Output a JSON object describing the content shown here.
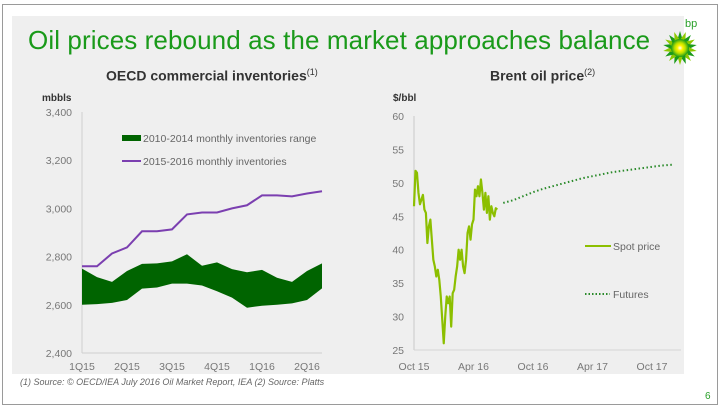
{
  "slide": {
    "title": "Oil prices rebound as the market approaches balance",
    "logo_text": "bp",
    "footnote": "(1)  Source: © OECD/IEA July 2016 Oil Market Report, IEA   (2) Source: Platts",
    "page_number": "6",
    "colors": {
      "title_green": "#1a9a1a",
      "range_fill": "#006400",
      "inventory_line": "#7b3fb0",
      "spot_line": "#8cbf00",
      "futures_dots": "#2a8a2a"
    }
  },
  "chart_data": [
    {
      "type": "area",
      "title": "OECD commercial inventories",
      "title_sup": "(1)",
      "ylabel": "mbbls",
      "xlabel": "",
      "ylim": [
        2400,
        3400
      ],
      "yticks": [
        "2,400",
        "2,600",
        "2,800",
        "3,000",
        "3,200",
        "3,400"
      ],
      "ytick_values": [
        2400,
        2600,
        2800,
        3000,
        3200,
        3400
      ],
      "xticks": [
        "1Q15",
        "2Q15",
        "3Q15",
        "4Q15",
        "1Q16",
        "2Q16"
      ],
      "xtick_index": [
        0,
        3,
        6,
        9,
        12,
        15
      ],
      "legend": [
        "2010-2014 monthly inventories range",
        "2015-2016 monthly inventories"
      ],
      "legend_position": "top-left",
      "grid": false,
      "series": [
        {
          "name": "2010-2014 monthly inventories range",
          "kind": "band",
          "upper": [
            2750,
            2715,
            2695,
            2740,
            2770,
            2772,
            2780,
            2810,
            2762,
            2776,
            2748,
            2735,
            2745,
            2712,
            2695,
            2740,
            2772
          ],
          "lower": [
            2600,
            2603,
            2608,
            2620,
            2667,
            2672,
            2688,
            2688,
            2680,
            2656,
            2630,
            2588,
            2596,
            2600,
            2606,
            2620,
            2668
          ]
        },
        {
          "name": "2015-2016 monthly inventories",
          "kind": "line",
          "values": [
            2760,
            2760,
            2813,
            2838,
            2905,
            2905,
            2913,
            2975,
            2983,
            2983,
            3000,
            3013,
            3054,
            3054,
            3050,
            3062,
            3071
          ]
        }
      ]
    },
    {
      "type": "line",
      "title": "Brent oil price",
      "title_sup": "(2)",
      "ylabel": "$/bbl",
      "xlabel": "",
      "ylim": [
        25,
        60
      ],
      "yticks": [
        "25",
        "30",
        "35",
        "40",
        "45",
        "50",
        "55",
        "60"
      ],
      "ytick_values": [
        25,
        30,
        35,
        40,
        45,
        50,
        55,
        60
      ],
      "xticks": [
        "Oct 15",
        "Apr 16",
        "Oct 16",
        "Apr 17",
        "Oct 17"
      ],
      "xtick_months": [
        0,
        6,
        12,
        18,
        24
      ],
      "xlim_months": [
        0,
        26
      ],
      "legend": [
        "Spot price",
        "Futures"
      ],
      "legend_position": "right",
      "grid": false,
      "series": [
        {
          "name": "Spot price",
          "style": "solid",
          "x_months": [
            0,
            0.15,
            0.3,
            0.45,
            0.6,
            0.75,
            0.9,
            1.05,
            1.2,
            1.35,
            1.5,
            1.65,
            1.8,
            1.95,
            2.1,
            2.25,
            2.4,
            2.55,
            2.7,
            2.85,
            3.0,
            3.15,
            3.3,
            3.45,
            3.6,
            3.75,
            3.9,
            4.05,
            4.2,
            4.35,
            4.5,
            4.65,
            4.8,
            4.95,
            5.1,
            5.25,
            5.4,
            5.55,
            5.7,
            5.85,
            6.0,
            6.15,
            6.3,
            6.45,
            6.6,
            6.75,
            6.9,
            7.05,
            7.2,
            7.35,
            7.5,
            7.65,
            7.8,
            7.95,
            8.1,
            8.25,
            8.4
          ],
          "values": [
            46.5,
            51.8,
            51.5,
            48.5,
            46.8,
            47.5,
            48.2,
            46.0,
            45.5,
            41.0,
            43.5,
            44.5,
            41.5,
            38.5,
            37.5,
            36.0,
            37.0,
            35.5,
            33.0,
            29.5,
            26.0,
            30.0,
            33.0,
            32.0,
            33.0,
            28.5,
            33.5,
            34.0,
            36.0,
            37.5,
            40.0,
            38.5,
            40.0,
            37.5,
            36.5,
            38.5,
            42.5,
            43.5,
            41.5,
            43.8,
            44.5,
            49.0,
            48.0,
            49.5,
            48.0,
            50.5,
            48.5,
            46.0,
            48.5,
            45.5,
            48.0,
            44.5,
            46.5,
            45.5,
            45.0,
            46.2,
            46.0
          ],
          "color": "#8cbf00"
        },
        {
          "name": "Futures",
          "style": "dotted",
          "x_months": [
            9,
            10,
            11,
            12,
            13,
            14,
            15,
            16,
            17,
            18,
            19,
            20,
            21,
            22,
            23,
            24,
            25,
            26
          ],
          "values": [
            47.0,
            47.4,
            48.0,
            48.6,
            49.1,
            49.5,
            49.9,
            50.3,
            50.7,
            51.0,
            51.3,
            51.6,
            51.8,
            52.0,
            52.2,
            52.4,
            52.6,
            52.7
          ],
          "color": "#2a8a2a"
        }
      ]
    }
  ]
}
